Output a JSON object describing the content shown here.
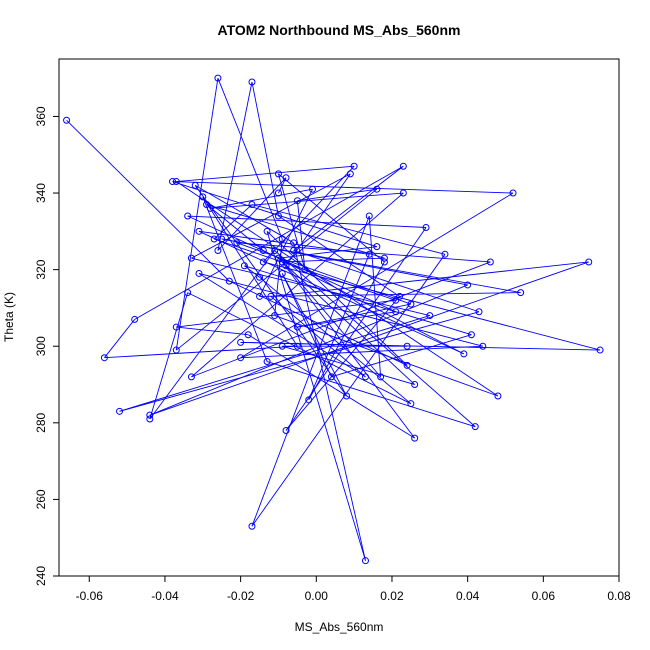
{
  "chart_data": {
    "type": "scatter",
    "title": "ATOM2 Northbound MS_Abs_560nm",
    "xlabel": "MS_Abs_560nm",
    "ylabel": "Theta (K)",
    "xlim": [
      -0.068,
      0.08
    ],
    "ylim": [
      240,
      375
    ],
    "x_ticks": [
      -0.06,
      -0.04,
      -0.02,
      0.0,
      0.02,
      0.04,
      0.06,
      0.08
    ],
    "x_tick_labels": [
      "-0.06",
      "-0.04",
      "-0.02",
      "0.00",
      "0.02",
      "0.04",
      "0.06",
      "0.08"
    ],
    "y_ticks": [
      240,
      260,
      280,
      300,
      320,
      340,
      360
    ],
    "y_tick_labels": [
      "240",
      "260",
      "280",
      "300",
      "320",
      "340",
      "360"
    ],
    "grid": false,
    "legend": "none",
    "connect_points": true,
    "color": "#0000ff",
    "series": [
      {
        "x": [
          -0.066,
          -0.023,
          0.024,
          -0.013,
          0.013,
          -0.006,
          -0.032,
          0.008,
          -0.009,
          0.004,
          0.041,
          -0.019,
          -0.015,
          0.025,
          -0.034,
          -0.044,
          -0.011,
          0.042,
          -0.013,
          -0.03,
          -0.005,
          -0.056,
          -0.048,
          0.023,
          -0.006,
          0.043,
          -0.052,
          0.03,
          -0.033,
          0.009,
          -0.008,
          0.017,
          0.014,
          -0.017,
          0.034,
          -0.017,
          -0.027,
          0.021,
          -0.037,
          -0.018,
          0.026,
          -0.009,
          0.018,
          -0.029,
          -0.014,
          0.039,
          -0.031,
          0.014,
          -0.002,
          0.018,
          -0.01,
          -0.003,
          -0.005,
          0.016,
          -0.037,
          -0.026,
          -0.009,
          -0.011,
          0.048,
          -0.037,
          0.01,
          -0.014,
          0.075,
          -0.02,
          0.024,
          -0.009,
          0.026,
          -0.01,
          0.016,
          -0.038,
          0.052,
          -0.02,
          0.044,
          -0.031,
          0.013,
          -0.012,
          0.072,
          -0.044,
          0.04,
          -0.025,
          0.054,
          -0.015,
          -0.001,
          -0.028,
          0.023,
          -0.033,
          0.046,
          -0.021,
          0.025,
          -0.005,
          0.021,
          -0.034,
          0.029,
          -0.008,
          0.022,
          -0.01,
          -0.017,
          -0.026,
          -0.008,
          -0.01
        ],
        "y": [
          359,
          317,
          295,
          330,
          244,
          327,
          342,
          287,
          319,
          292,
          303,
          321,
          318,
          285,
          314,
          281,
          325,
          279,
          296,
          339,
          300,
          297,
          307,
          347,
          325,
          309,
          283,
          308,
          323,
          345,
          321,
          292,
          334,
          253,
          324,
          337,
          328,
          312,
          305,
          303,
          276,
          322,
          323,
          337,
          325,
          298,
          330,
          324,
          286,
          322,
          345,
          320,
          338,
          341,
          299,
          370,
          328,
          308,
          287,
          343,
          347,
          322,
          299,
          301,
          300,
          300,
          290,
          323,
          326,
          343,
          340,
          297,
          300,
          319,
          292,
          313,
          322,
          282,
          316,
          328,
          314,
          313,
          341,
          336,
          340,
          292,
          322,
          327,
          311,
          305,
          309,
          334,
          331,
          278,
          313,
          334,
          369,
          325,
          344,
          340
        ]
      }
    ]
  }
}
